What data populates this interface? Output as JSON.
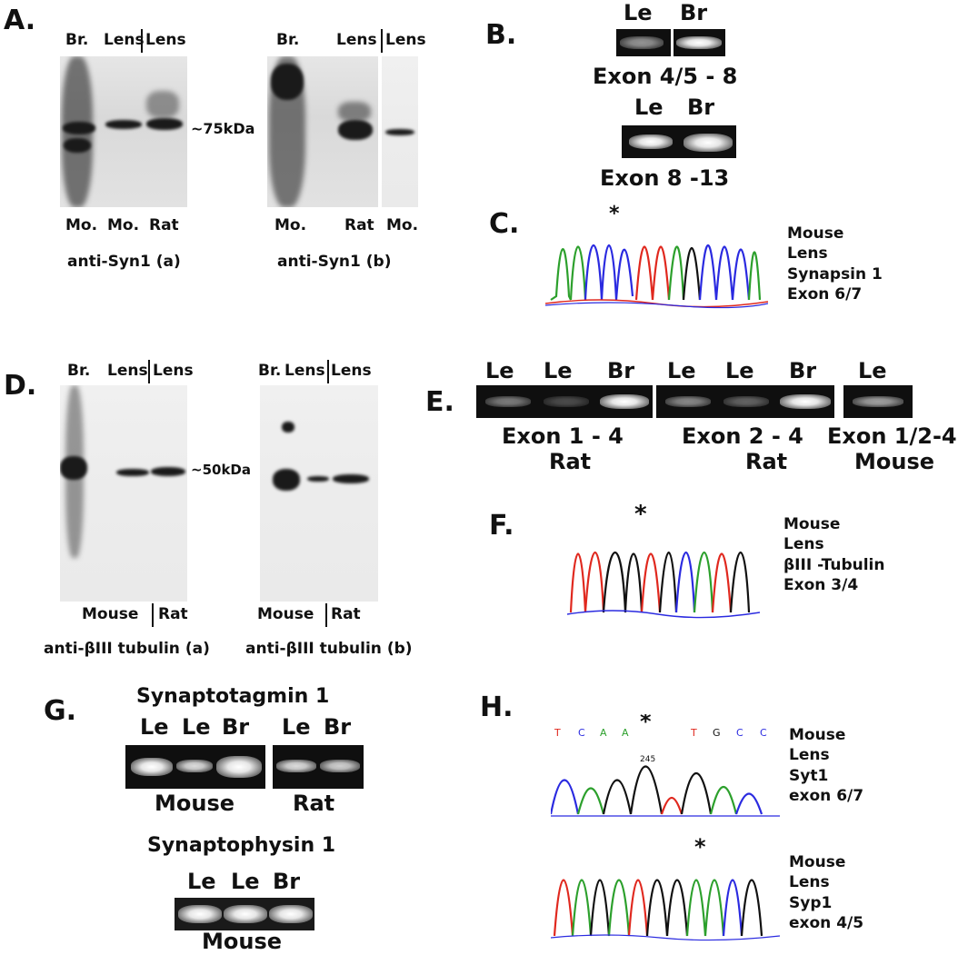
{
  "panelA": {
    "label": "A.",
    "blot_a": {
      "lanes_top": [
        "Br.",
        "Lens",
        "Lens"
      ],
      "lanes_bottom": [
        "Mo.",
        "Mo.",
        "Rat"
      ],
      "title": "anti-Syn1 (a)",
      "marker": "~75kDa"
    },
    "blot_b": {
      "lanes_top": [
        "Br.",
        "Lens",
        "Lens"
      ],
      "lanes_bottom": [
        "Mo.",
        "Rat",
        "Mo."
      ],
      "title": "anti-Syn1 (b)"
    }
  },
  "panelB": {
    "label": "B.",
    "gel1": {
      "lanes": [
        "Le",
        "Br"
      ],
      "caption": "Exon 4/5 - 8"
    },
    "gel2": {
      "lanes": [
        "Le",
        "Br"
      ],
      "caption": "Exon 8 -13"
    }
  },
  "panelC": {
    "label": "C.",
    "info": [
      "Mouse",
      "Lens",
      "Synapsin 1",
      "Exon 6/7"
    ]
  },
  "panelD": {
    "label": "D.",
    "blot_a": {
      "lanes_top": [
        "Br.",
        "Lens",
        "Lens"
      ],
      "bottom": [
        "Mouse",
        "Rat"
      ],
      "title": "anti-βIII tubulin (a)",
      "marker": "~50kDa"
    },
    "blot_b": {
      "lanes_top": [
        "Br.",
        "Lens",
        "Lens"
      ],
      "bottom": [
        "Mouse",
        "Rat"
      ],
      "title": "anti-βIII tubulin (b)"
    }
  },
  "panelE": {
    "label": "E.",
    "lanes": [
      "Le",
      "Le",
      "Br",
      "Le",
      "Le",
      "Br",
      "Le"
    ],
    "captions": [
      {
        "line1": "Exon 1 - 4",
        "line2": "Rat"
      },
      {
        "line1": "Exon 2 - 4",
        "line2": "Rat"
      },
      {
        "line1": "Exon 1/2-4",
        "line2": "Mouse"
      }
    ]
  },
  "panelF": {
    "label": "F.",
    "info": [
      "Mouse",
      "Lens",
      "βIII -Tubulin",
      "Exon 3/4"
    ]
  },
  "panelG": {
    "label": "G.",
    "syt_title": "Synaptotagmin 1",
    "syt_lanes_mouse": [
      "Le",
      "Le",
      "Br"
    ],
    "syt_lanes_rat": [
      "Le",
      "Br"
    ],
    "syt_species": [
      "Mouse",
      "Rat"
    ],
    "syp_title": "Synaptophysin 1",
    "syp_lanes": [
      "Le",
      "Le",
      "Br"
    ],
    "syp_species": "Mouse"
  },
  "panelH": {
    "label": "H.",
    "info1": [
      "Mouse",
      "Lens",
      "Syt1",
      "exon 6/7"
    ],
    "info2": [
      "Mouse",
      "Lens",
      "Syp1",
      "exon 4/5"
    ],
    "peak_no": "245"
  },
  "colors": {
    "A": "#2ca02c",
    "C": "#2a2ae0",
    "G": "#111111",
    "T": "#e0281e"
  }
}
